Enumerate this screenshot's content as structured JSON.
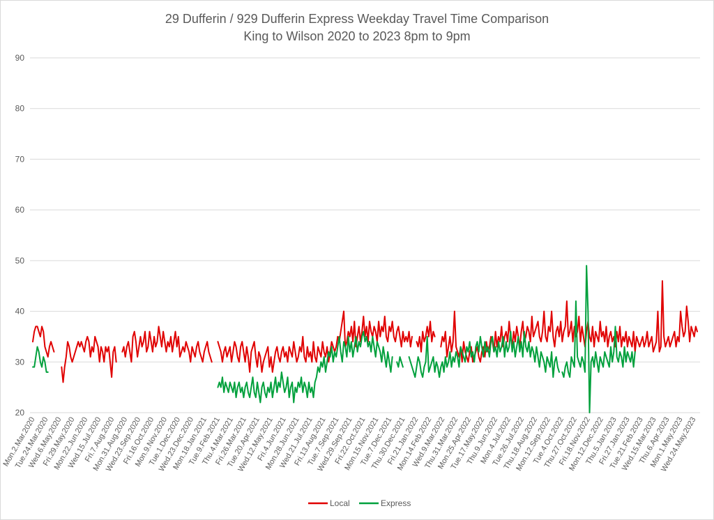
{
  "chart_data": {
    "type": "line",
    "title": "29 Dufferin / 929 Dufferin Express Weekday Travel Time Comparison",
    "subtitle": "King to Wilson 2020 to 2023 8pm to 9pm",
    "xlabel": "",
    "ylabel": "",
    "ylim": [
      20,
      90
    ],
    "yticks": [
      20,
      30,
      40,
      50,
      60,
      70,
      80,
      90
    ],
    "grid": true,
    "legend_position": "bottom",
    "x_tick_labels": [
      "Mon.2.Mar.2020",
      "Tue.24.Mar.2020",
      "Wed.6.May.2020",
      "Fri.29.May.2020",
      "Mon.22.Jun.2020",
      "Wed.15.Jul.2020",
      "Fri.7.Aug.2020",
      "Mon.31.Aug.2020",
      "Wed.23.Sep.2020",
      "Fri.16.Oct.2020",
      "Mon.9.Nov.2020",
      "Tue.1.Dec.2020",
      "Wed.23.Dec.2020",
      "Mon.18.Jan.2021",
      "Tue.9.Feb.2021",
      "Thu.4.Mar.2021",
      "Fri.26.Mar.2021",
      "Tue.20.Apr.2021",
      "Wed.12.May.2021",
      "Fri.4.Jun.2021",
      "Mon.28.Jun.2021",
      "Wed.21.Jul.2021",
      "Fri.13.Aug.2021",
      "Tue.7.Sep.2021",
      "Wed.29.Sep.2021",
      "Fri.22.Oct.2021",
      "Mon.15.Nov.2021",
      "Tue.7.Dec.2021",
      "Thu.30.Dec.2021",
      "Fri.21.Jan.2022",
      "Mon.14.Feb.2022",
      "Wed.9.Mar.2022",
      "Thu.31.Mar.2022",
      "Mon.25.Apr.2022",
      "Tue.17.May.2022",
      "Thu.9.Jun.2022",
      "Mon.4.Jul.2022",
      "Tue.26.Jul.2022",
      "Thu.18.Aug.2022",
      "Mon.12.Sep.2022",
      "Tue.4.Oct.2022",
      "Thu.27.Oct.2022",
      "Fri.18.Nov.2022",
      "Mon.12.Dec.2022",
      "Thu.5.Jan.2023",
      "Fri.27.Jan.2023",
      "Tue.21.Feb.2023",
      "Wed.15.Mar.2023",
      "Thu.6.Apr.2023",
      "Mon.1.May.2023",
      "Wed.24.May.2023"
    ],
    "series": [
      {
        "name": "Local",
        "color": "#e00000",
        "values": [
          34,
          36,
          37,
          37,
          36,
          35,
          37,
          36,
          33,
          32,
          31,
          33,
          34,
          33,
          32,
          null,
          null,
          null,
          null,
          29,
          26,
          29,
          31,
          34,
          33,
          31,
          30,
          31,
          32,
          33,
          34,
          33,
          34,
          33,
          32,
          34,
          35,
          34,
          31,
          33,
          32,
          35,
          34,
          33,
          30,
          33,
          32,
          30,
          33,
          32,
          33,
          30,
          27,
          32,
          33,
          30,
          null,
          null,
          null,
          32,
          33,
          31,
          33,
          34,
          32,
          30,
          35,
          36,
          34,
          31,
          33,
          35,
          33,
          34,
          36,
          32,
          33,
          36,
          34,
          32,
          35,
          33,
          34,
          37,
          35,
          33,
          36,
          34,
          32,
          34,
          33,
          35,
          32,
          34,
          36,
          33,
          35,
          31,
          32,
          33,
          32,
          34,
          33,
          32,
          30,
          33,
          32,
          31,
          33,
          34,
          32,
          31,
          30,
          32,
          33,
          34,
          32,
          31,
          30,
          null,
          null,
          null,
          34,
          33,
          32,
          30,
          32,
          33,
          31,
          32,
          33,
          30,
          32,
          34,
          33,
          31,
          30,
          33,
          34,
          32,
          30,
          33,
          31,
          28,
          32,
          33,
          34,
          31,
          29,
          32,
          31,
          28,
          30,
          31,
          32,
          33,
          29,
          31,
          28,
          30,
          32,
          33,
          31,
          30,
          32,
          33,
          31,
          32,
          30,
          33,
          32,
          31,
          34,
          32,
          30,
          31,
          33,
          32,
          35,
          31,
          30,
          33,
          31,
          32,
          30,
          34,
          31,
          30,
          33,
          32,
          31,
          34,
          32,
          31,
          33,
          30,
          32,
          34,
          33,
          32,
          33,
          35,
          34,
          36,
          38,
          40,
          33,
          34,
          36,
          35,
          37,
          34,
          38,
          33,
          35,
          37,
          34,
          36,
          39,
          35,
          37,
          34,
          38,
          36,
          35,
          37,
          36,
          34,
          38,
          35,
          37,
          36,
          39,
          35,
          34,
          37,
          36,
          38,
          35,
          34,
          36,
          37,
          35,
          33,
          36,
          34,
          35,
          34,
          36,
          33,
          35,
          null,
          null,
          34,
          33,
          35,
          32,
          36,
          34,
          35,
          37,
          35,
          38,
          34,
          36,
          35,
          null,
          null,
          null,
          33,
          35,
          34,
          36,
          31,
          33,
          35,
          32,
          34,
          40,
          33,
          32,
          31,
          33,
          30,
          34,
          32,
          31,
          30,
          32,
          33,
          30,
          31,
          32,
          33,
          31,
          30,
          32,
          33,
          31,
          34,
          32,
          33,
          35,
          34,
          32,
          36,
          33,
          35,
          34,
          37,
          33,
          35,
          36,
          34,
          38,
          35,
          33,
          36,
          34,
          37,
          35,
          33,
          36,
          38,
          34,
          35,
          37,
          36,
          34,
          39,
          35,
          36,
          37,
          38,
          35,
          34,
          36,
          40,
          35,
          34,
          37,
          36,
          40,
          35,
          33,
          36,
          37,
          35,
          38,
          34,
          36,
          37,
          42,
          35,
          36,
          38,
          34,
          37,
          35,
          36,
          39,
          34,
          37,
          35,
          33,
          36,
          38,
          35,
          34,
          37,
          33,
          36,
          35,
          34,
          38,
          35,
          36,
          34,
          37,
          33,
          35,
          36,
          34,
          35,
          33,
          36,
          34,
          37,
          33,
          35,
          34,
          36,
          33,
          35,
          34,
          33,
          36,
          32,
          35,
          34,
          33,
          34,
          35,
          33,
          34,
          36,
          33,
          34,
          35,
          32,
          33,
          34,
          40,
          32,
          33,
          46,
          35,
          33,
          34,
          35,
          33,
          34,
          35,
          36,
          33,
          35,
          34,
          40,
          37,
          35,
          36,
          41,
          38,
          34,
          37,
          36,
          35,
          37,
          36
        ]
      },
      {
        "name": "Express",
        "color": "#00a03c",
        "values": [
          29,
          29,
          31,
          33,
          32,
          30,
          29,
          31,
          30,
          28,
          28,
          null,
          null,
          null,
          null,
          null,
          null,
          null,
          null,
          null,
          null,
          null,
          null,
          null,
          null,
          null,
          null,
          null,
          null,
          null,
          null,
          null,
          null,
          null,
          null,
          null,
          null,
          null,
          null,
          null,
          null,
          null,
          null,
          null,
          null,
          null,
          null,
          null,
          null,
          null,
          null,
          null,
          null,
          null,
          null,
          null,
          null,
          null,
          null,
          null,
          null,
          null,
          null,
          null,
          null,
          null,
          null,
          null,
          null,
          null,
          null,
          null,
          null,
          null,
          null,
          null,
          null,
          null,
          null,
          null,
          null,
          null,
          null,
          null,
          null,
          null,
          null,
          null,
          null,
          null,
          null,
          null,
          null,
          null,
          null,
          null,
          null,
          null,
          null,
          null,
          null,
          null,
          null,
          null,
          null,
          null,
          null,
          null,
          null,
          null,
          null,
          null,
          null,
          null,
          null,
          null,
          null,
          null,
          null,
          null,
          null,
          null,
          25,
          26,
          25,
          27,
          24,
          26,
          25,
          24,
          26,
          25,
          24,
          26,
          23,
          25,
          26,
          24,
          25,
          23,
          25,
          26,
          24,
          23,
          25,
          27,
          24,
          23,
          26,
          24,
          22,
          25,
          26,
          24,
          23,
          25,
          24,
          26,
          23,
          25,
          27,
          24,
          26,
          25,
          28,
          26,
          24,
          25,
          27,
          23,
          25,
          26,
          22,
          25,
          24,
          26,
          25,
          27,
          24,
          26,
          25,
          23,
          26,
          24,
          25,
          23,
          26,
          27,
          29,
          28,
          30,
          29,
          31,
          28,
          30,
          32,
          31,
          33,
          30,
          32,
          31,
          33,
          35,
          32,
          30,
          34,
          33,
          31,
          35,
          32,
          34,
          31,
          33,
          35,
          32,
          34,
          33,
          35,
          36,
          34,
          35,
          33,
          34,
          32,
          35,
          33,
          31,
          34,
          33,
          32,
          30,
          33,
          31,
          29,
          32,
          30,
          28,
          31,
          null,
          null,
          30,
          29,
          31,
          30,
          29,
          null,
          null,
          null,
          31,
          30,
          29,
          28,
          27,
          29,
          31,
          30,
          28,
          27,
          29,
          30,
          35,
          28,
          29,
          30,
          31,
          28,
          30,
          29,
          27,
          29,
          30,
          28,
          31,
          29,
          30,
          32,
          29,
          31,
          30,
          32,
          31,
          29,
          33,
          32,
          31,
          30,
          33,
          32,
          34,
          31,
          32,
          30,
          33,
          34,
          32,
          35,
          33,
          31,
          34,
          32,
          33,
          31,
          34,
          35,
          32,
          33,
          31,
          34,
          32,
          33,
          35,
          31,
          34,
          32,
          33,
          36,
          32,
          34,
          31,
          33,
          35,
          32,
          34,
          31,
          36,
          33,
          32,
          34,
          31,
          33,
          32,
          30,
          33,
          31,
          29,
          32,
          31,
          30,
          28,
          31,
          30,
          29,
          32,
          27,
          30,
          31,
          29,
          28,
          null,
          28,
          27,
          29,
          30,
          28,
          27,
          31,
          30,
          29,
          42,
          31,
          30,
          29,
          31,
          30,
          28,
          49,
          40,
          20,
          30,
          31,
          29,
          32,
          30,
          28,
          31,
          30,
          29,
          32,
          31,
          30,
          29,
          33,
          30,
          32,
          37,
          31,
          30,
          32,
          31,
          29,
          33,
          30,
          32,
          31,
          30,
          32,
          29,
          32
        ]
      }
    ]
  }
}
